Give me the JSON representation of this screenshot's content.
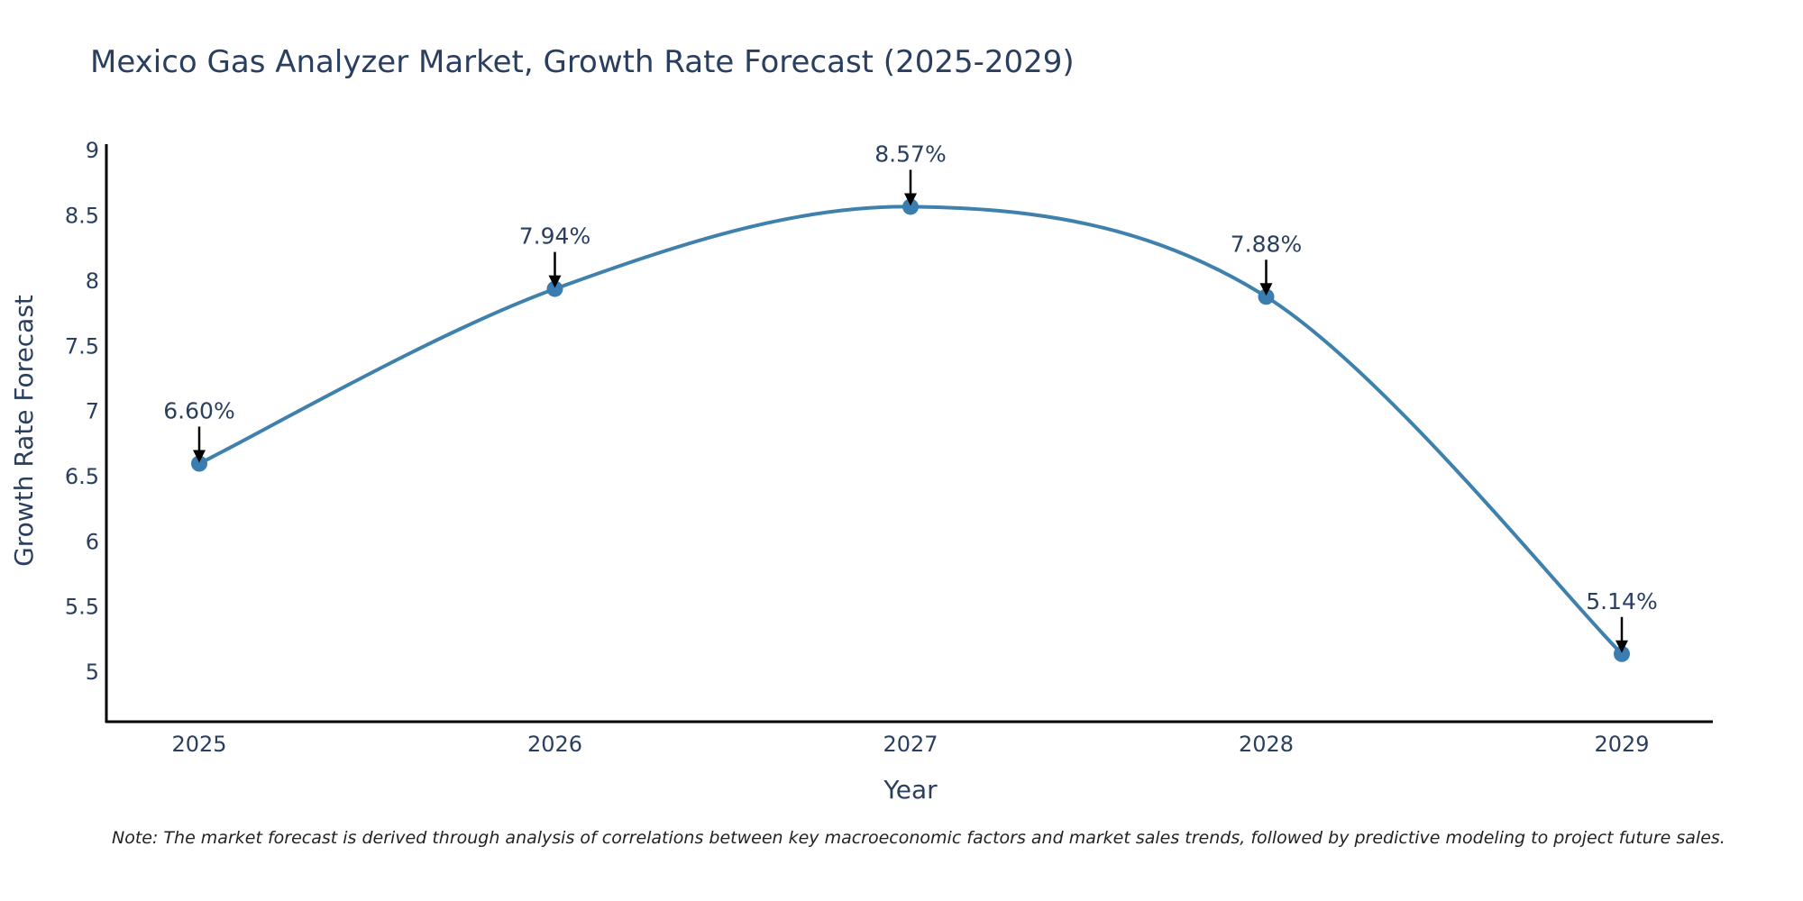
{
  "colors": {
    "line": "#3f80ad",
    "marker": "#3a7db1",
    "arrow": "#000000",
    "text": "#2a3f5f"
  },
  "chart_data": {
    "type": "line",
    "title": "Mexico Gas Analyzer Market, Growth Rate Forecast (2025-2029)",
    "xlabel": "Year",
    "ylabel": "Growth Rate Forecast",
    "categories": [
      "2025",
      "2026",
      "2027",
      "2028",
      "2029"
    ],
    "values": [
      6.6,
      7.94,
      8.57,
      7.88,
      5.14
    ],
    "data_labels": [
      "6.60%",
      "7.94%",
      "8.57%",
      "7.88%",
      "5.14%"
    ],
    "yticks": [
      "5",
      "5.5",
      "6",
      "6.5",
      "7",
      "7.5",
      "8",
      "8.5",
      "9"
    ],
    "ylim": [
      4.62,
      9.05
    ],
    "line_shape": "spline",
    "grid": false,
    "legend": "none"
  },
  "note": "Note: The market forecast is derived through analysis of correlations between key macroeconomic factors and market sales trends, followed by predictive modeling to project future sales."
}
